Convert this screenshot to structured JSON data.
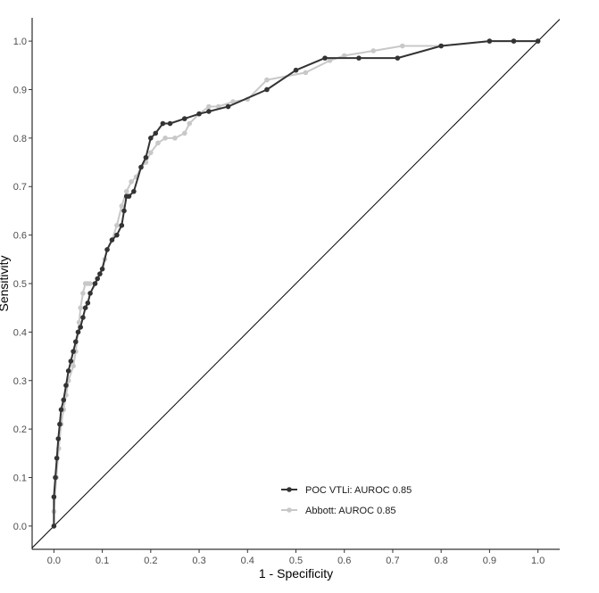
{
  "chart_data": {
    "type": "line",
    "title": "",
    "xlabel": "1 - Specificity",
    "ylabel": "Sensitivity",
    "xlim": [
      -0.045,
      1.045
    ],
    "ylim": [
      -0.048,
      1.048
    ],
    "x_ticks": [
      0.0,
      0.1,
      0.2,
      0.3,
      0.4,
      0.5,
      0.6,
      0.7,
      0.8,
      0.9,
      1.0
    ],
    "x_tick_labels": [
      "0.0",
      "0.1",
      "0.2",
      "0.3",
      "0.4",
      "0.5",
      "0.6",
      "0.7",
      "0.8",
      "0.9",
      "1.0"
    ],
    "y_ticks": [
      0.0,
      0.1,
      0.2,
      0.3,
      0.4,
      0.5,
      0.6,
      0.7,
      0.8,
      0.9,
      1.0
    ],
    "y_tick_labels": [
      "0.0",
      "0.1",
      "0.2",
      "0.3",
      "0.4",
      "0.5",
      "0.6",
      "0.7",
      "0.8",
      "0.9",
      "1.0"
    ],
    "grid": false,
    "legend_position": "bottom-right",
    "reference_line": [
      [
        -0.045,
        -0.045
      ],
      [
        1.045,
        1.045
      ]
    ],
    "series": [
      {
        "name": "Abbott: AUROC 0.85",
        "color": "#c8c8c8",
        "x": [
          0.0,
          0.0,
          0.005,
          0.01,
          0.015,
          0.02,
          0.025,
          0.03,
          0.04,
          0.045,
          0.05,
          0.052,
          0.055,
          0.06,
          0.065,
          0.07,
          0.075,
          0.085,
          0.095,
          0.105,
          0.11,
          0.12,
          0.13,
          0.14,
          0.15,
          0.16,
          0.17,
          0.18,
          0.19,
          0.2,
          0.215,
          0.23,
          0.25,
          0.27,
          0.28,
          0.3,
          0.32,
          0.34,
          0.37,
          0.4,
          0.44,
          0.52,
          0.57,
          0.6,
          0.66,
          0.72,
          0.8,
          0.9,
          0.95,
          1.0
        ],
        "y": [
          0.0,
          0.03,
          0.1,
          0.16,
          0.21,
          0.24,
          0.27,
          0.3,
          0.33,
          0.36,
          0.4,
          0.42,
          0.45,
          0.48,
          0.5,
          0.5,
          0.5,
          0.5,
          0.52,
          0.55,
          0.57,
          0.59,
          0.62,
          0.66,
          0.69,
          0.71,
          0.72,
          0.74,
          0.75,
          0.77,
          0.79,
          0.8,
          0.8,
          0.81,
          0.83,
          0.85,
          0.865,
          0.865,
          0.875,
          0.88,
          0.92,
          0.935,
          0.96,
          0.97,
          0.98,
          0.99,
          0.99,
          1.0,
          1.0,
          1.0
        ]
      },
      {
        "name": "POC VTLi: AUROC 0.85",
        "color": "#333333",
        "x": [
          0.0,
          0.0,
          0.003,
          0.006,
          0.009,
          0.012,
          0.015,
          0.02,
          0.025,
          0.03,
          0.035,
          0.04,
          0.045,
          0.05,
          0.055,
          0.06,
          0.065,
          0.07,
          0.075,
          0.085,
          0.09,
          0.095,
          0.1,
          0.11,
          0.12,
          0.13,
          0.14,
          0.145,
          0.15,
          0.155,
          0.165,
          0.18,
          0.19,
          0.2,
          0.21,
          0.225,
          0.24,
          0.27,
          0.3,
          0.32,
          0.36,
          0.44,
          0.5,
          0.56,
          0.63,
          0.71,
          0.8,
          0.9,
          0.95,
          1.0
        ],
        "y": [
          0.0,
          0.06,
          0.1,
          0.14,
          0.18,
          0.21,
          0.24,
          0.26,
          0.29,
          0.32,
          0.34,
          0.36,
          0.38,
          0.4,
          0.41,
          0.43,
          0.45,
          0.46,
          0.48,
          0.5,
          0.51,
          0.52,
          0.53,
          0.57,
          0.59,
          0.6,
          0.62,
          0.65,
          0.68,
          0.68,
          0.69,
          0.74,
          0.76,
          0.8,
          0.81,
          0.83,
          0.83,
          0.84,
          0.85,
          0.855,
          0.865,
          0.9,
          0.94,
          0.965,
          0.965,
          0.965,
          0.99,
          1.0,
          1.0,
          1.0
        ]
      }
    ]
  }
}
